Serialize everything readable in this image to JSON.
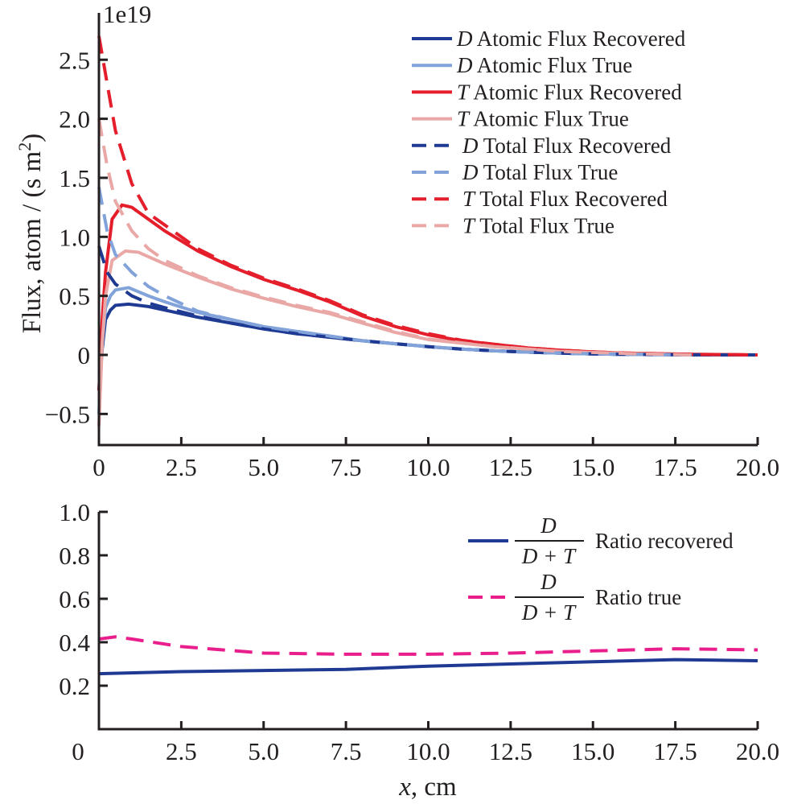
{
  "chart_data": [
    {
      "type": "line",
      "multiplier_label": "1e19",
      "ylabel": "Flux, atom / (s m",
      "ylabel_sup": "2",
      "ylabel_end": ")",
      "xlim": [
        0,
        20
      ],
      "ylim": [
        -0.77,
        2.9
      ],
      "xticks": [
        "0",
        "2.5",
        "5.0",
        "7.5",
        "10.0",
        "12.5",
        "15.0",
        "17.5",
        "20.0"
      ],
      "yticks": [
        "−0.5",
        "0",
        "0.5",
        "1.0",
        "1.5",
        "2.0",
        "2.5"
      ],
      "ytick_values": [
        -0.5,
        0,
        0.5,
        1.0,
        1.5,
        2.0,
        2.5
      ],
      "grid": false,
      "legend_position": "top-right",
      "series": [
        {
          "name_italic": "D",
          "name": " Atomic Flux Recovered",
          "color": "#1f3a93",
          "style": "solid",
          "x": [
            0,
            0.1,
            0.2,
            0.35,
            0.5,
            0.9,
            1.5,
            2,
            3,
            4,
            5,
            6,
            7,
            8,
            9,
            10,
            11,
            12,
            13,
            14,
            15,
            16,
            18,
            20
          ],
          "y": [
            -0.3,
            0.05,
            0.3,
            0.38,
            0.42,
            0.43,
            0.41,
            0.38,
            0.32,
            0.27,
            0.22,
            0.18,
            0.15,
            0.12,
            0.095,
            0.07,
            0.05,
            0.035,
            0.024,
            0.015,
            0.009,
            0.005,
            0.001,
            0
          ]
        },
        {
          "name_italic": "D",
          "name": " Atomic Flux True",
          "color": "#82a3da",
          "style": "solid",
          "x": [
            0,
            0.1,
            0.2,
            0.35,
            0.5,
            0.9,
            1.5,
            2,
            3,
            4,
            5,
            6,
            7,
            8,
            9,
            10,
            11,
            12,
            13,
            14,
            15,
            16,
            18
          ],
          "y": [
            -0.5,
            0.1,
            0.4,
            0.5,
            0.55,
            0.57,
            0.5,
            0.45,
            0.36,
            0.3,
            0.24,
            0.2,
            0.16,
            0.12,
            0.095,
            0.07,
            0.05,
            0.035,
            0.024,
            0.015,
            0.009,
            0.005,
            0
          ]
        },
        {
          "name_italic": "T",
          "name": " Atomic Flux Recovered",
          "color": "#e41e2b",
          "style": "solid",
          "x": [
            0,
            0.1,
            0.2,
            0.4,
            0.7,
            1.0,
            2,
            3,
            4,
            5,
            6,
            7,
            8,
            9,
            10,
            11,
            12,
            13,
            14,
            15,
            16,
            18,
            20
          ],
          "y": [
            -0.3,
            0.3,
            0.7,
            1.15,
            1.27,
            1.25,
            1.05,
            0.88,
            0.75,
            0.64,
            0.55,
            0.45,
            0.33,
            0.24,
            0.17,
            0.12,
            0.09,
            0.06,
            0.04,
            0.025,
            0.015,
            0.005,
            0
          ]
        },
        {
          "name_italic": "T",
          "name": " Atomic Flux True",
          "color": "#e9a7a5",
          "style": "solid",
          "x": [
            0,
            0.1,
            0.2,
            0.4,
            0.8,
            1.2,
            2,
            3,
            4,
            5,
            6,
            7,
            8,
            9,
            10,
            12,
            14,
            16,
            18
          ],
          "y": [
            -0.6,
            0.1,
            0.5,
            0.8,
            0.88,
            0.87,
            0.77,
            0.66,
            0.56,
            0.48,
            0.41,
            0.35,
            0.27,
            0.19,
            0.13,
            0.07,
            0.03,
            0.012,
            0
          ]
        },
        {
          "name_italic": "D",
          "name": " Total Flux Recovered",
          "color": "#1f3a93",
          "style": "dashed",
          "x": [
            0,
            0.25,
            0.5,
            1,
            1.5,
            2,
            3,
            4,
            5,
            6,
            7,
            8,
            9,
            10,
            11,
            12,
            13,
            14,
            15,
            16,
            18,
            20
          ],
          "y": [
            0.92,
            0.7,
            0.6,
            0.5,
            0.44,
            0.4,
            0.33,
            0.27,
            0.22,
            0.18,
            0.15,
            0.12,
            0.095,
            0.07,
            0.05,
            0.035,
            0.024,
            0.015,
            0.009,
            0.005,
            0.001,
            0
          ]
        },
        {
          "name_italic": "D",
          "name": " Total Flux True",
          "color": "#82a3da",
          "style": "dashed",
          "x": [
            0,
            0.25,
            0.5,
            1,
            1.5,
            2,
            3,
            4,
            5,
            6,
            7,
            8,
            9,
            10,
            11,
            12,
            13,
            14,
            15,
            16,
            18
          ],
          "y": [
            1.42,
            1.05,
            0.85,
            0.7,
            0.58,
            0.5,
            0.37,
            0.3,
            0.24,
            0.2,
            0.16,
            0.12,
            0.095,
            0.07,
            0.05,
            0.035,
            0.024,
            0.015,
            0.009,
            0.005,
            0
          ]
        },
        {
          "name_italic": "T",
          "name": " Total Flux Recovered",
          "color": "#e41e2b",
          "style": "dashed",
          "x": [
            0,
            0.25,
            0.5,
            1,
            1.5,
            2,
            3,
            4,
            5,
            6,
            7,
            8,
            9,
            10,
            11,
            12,
            13,
            14,
            15,
            16,
            18,
            20
          ],
          "y": [
            2.7,
            2.3,
            1.9,
            1.45,
            1.2,
            1.1,
            0.9,
            0.76,
            0.65,
            0.56,
            0.46,
            0.34,
            0.25,
            0.18,
            0.125,
            0.09,
            0.06,
            0.04,
            0.025,
            0.015,
            0.005,
            0
          ]
        },
        {
          "name_italic": "T",
          "name": " Total Flux True",
          "color": "#e9a7a5",
          "style": "dashed",
          "x": [
            0,
            0.25,
            0.5,
            1,
            1.5,
            2,
            3,
            4,
            5,
            6,
            7,
            8,
            9,
            10,
            12,
            14,
            16,
            18
          ],
          "y": [
            2.0,
            1.6,
            1.3,
            1.05,
            0.9,
            0.8,
            0.67,
            0.57,
            0.49,
            0.42,
            0.36,
            0.28,
            0.2,
            0.135,
            0.07,
            0.03,
            0.012,
            0
          ]
        }
      ]
    },
    {
      "type": "line",
      "xlabel_italic": "x",
      "xlabel": ", cm",
      "xlim": [
        0,
        20
      ],
      "ylim": [
        0,
        1.0
      ],
      "xticks": [
        "0",
        "2.5",
        "5.0",
        "7.5",
        "10.0",
        "12.5",
        "15.0",
        "17.5",
        "20.0"
      ],
      "yticks": [
        "0.2",
        "0.4",
        "0.6",
        "0.8",
        "1.0"
      ],
      "ytick_values": [
        0.2,
        0.4,
        0.6,
        0.8,
        1.0
      ],
      "grid": false,
      "legend_position": "top-right",
      "series": [
        {
          "frac_num": "D",
          "frac_den": "D + T",
          "name": "Ratio recovered",
          "color": "#1f3a93",
          "style": "solid",
          "x": [
            0,
            2.5,
            5,
            7.5,
            10,
            12.5,
            15,
            17.5,
            20
          ],
          "y": [
            0.255,
            0.265,
            0.27,
            0.275,
            0.29,
            0.3,
            0.31,
            0.32,
            0.315
          ]
        },
        {
          "frac_num": "D",
          "frac_den": "D + T",
          "name": "Ratio true",
          "color": "#e91e8c",
          "style": "dashed",
          "x": [
            0,
            0.5,
            1,
            2.5,
            5,
            7.5,
            10,
            12.5,
            15,
            17.5,
            20
          ],
          "y": [
            0.415,
            0.425,
            0.415,
            0.38,
            0.35,
            0.345,
            0.345,
            0.35,
            0.36,
            0.37,
            0.365
          ]
        }
      ]
    }
  ]
}
